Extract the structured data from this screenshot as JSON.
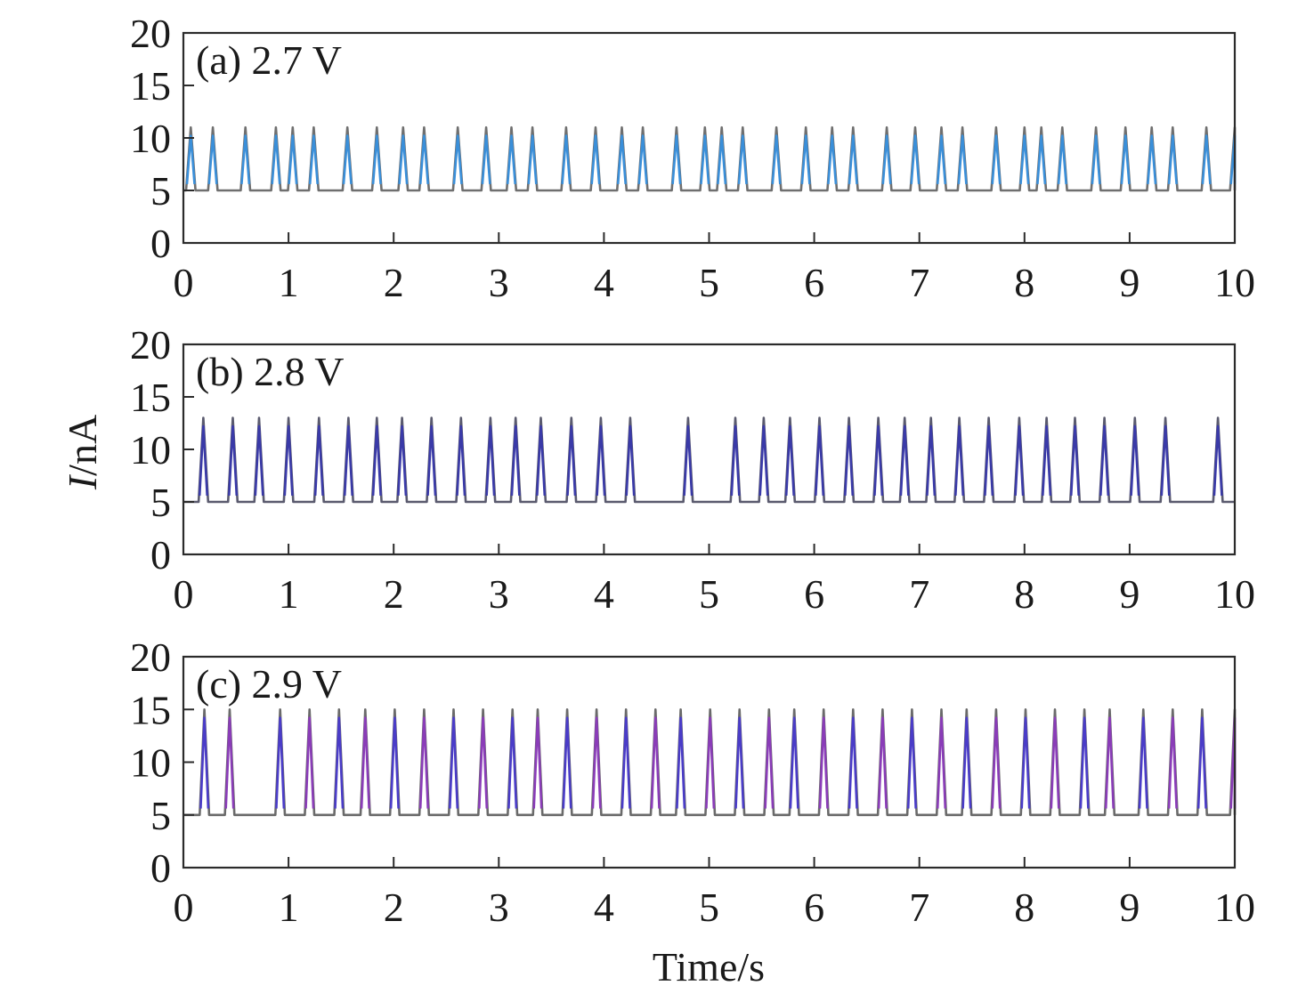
{
  "chart_data": {
    "type": "line",
    "xlabel": "Time/s",
    "ylabel_italic": "I",
    "ylabel_unit": "/nA",
    "xlim": [
      0,
      10
    ],
    "ylim": [
      0,
      20
    ],
    "x_ticks": [
      "0",
      "1",
      "2",
      "3",
      "4",
      "5",
      "6",
      "7",
      "8",
      "9",
      "10"
    ],
    "y_ticks": [
      "0",
      "5",
      "10",
      "15",
      "20"
    ],
    "panels": [
      {
        "label": "(a) 2.7 V",
        "baseline": 5,
        "peak": 11,
        "peak_times": [
          0.07,
          0.28,
          0.59,
          0.88,
          1.04,
          1.24,
          1.56,
          1.84,
          2.09,
          2.29,
          2.61,
          2.88,
          3.12,
          3.32,
          3.64,
          3.92,
          4.17,
          4.37,
          4.69,
          4.96,
          5.12,
          5.32,
          5.64,
          5.92,
          6.17,
          6.37,
          6.69,
          6.96,
          7.21,
          7.41,
          7.73,
          8.0,
          8.16,
          8.36,
          8.68,
          8.96,
          9.21,
          9.41,
          9.73,
          10.0
        ],
        "colors": [
          "#3a8fd9",
          "#6f6f6f"
        ]
      },
      {
        "label": "(b) 2.8 V",
        "baseline": 5,
        "peak": 13,
        "peak_times": [
          0.19,
          0.47,
          0.72,
          1.0,
          1.29,
          1.57,
          1.84,
          2.08,
          2.36,
          2.64,
          2.92,
          3.16,
          3.4,
          3.69,
          3.97,
          4.25,
          4.8,
          5.25,
          5.52,
          5.77,
          6.05,
          6.33,
          6.61,
          6.86,
          7.11,
          7.38,
          7.66,
          7.95,
          8.21,
          8.48,
          8.76,
          9.05,
          9.34,
          9.84
        ],
        "colors": [
          "#3a3aa8",
          "#5a5a6e"
        ]
      },
      {
        "label": "(c) 2.9 V",
        "baseline": 5,
        "peak": 15,
        "peak_times": [
          0.2,
          0.44,
          0.92,
          1.2,
          1.48,
          1.73,
          2.01,
          2.29,
          2.57,
          2.85,
          3.13,
          3.37,
          3.65,
          3.93,
          4.21,
          4.49,
          4.73,
          5.01,
          5.29,
          5.57,
          5.81,
          6.09,
          6.37,
          6.65,
          6.93,
          7.21,
          7.45,
          7.73,
          8.01,
          8.29,
          8.57,
          8.81,
          9.13,
          9.41,
          9.69,
          10.0
        ],
        "colors": [
          "#4a3cc8",
          "#8a3cb8",
          "#6a6a6a"
        ]
      }
    ]
  }
}
